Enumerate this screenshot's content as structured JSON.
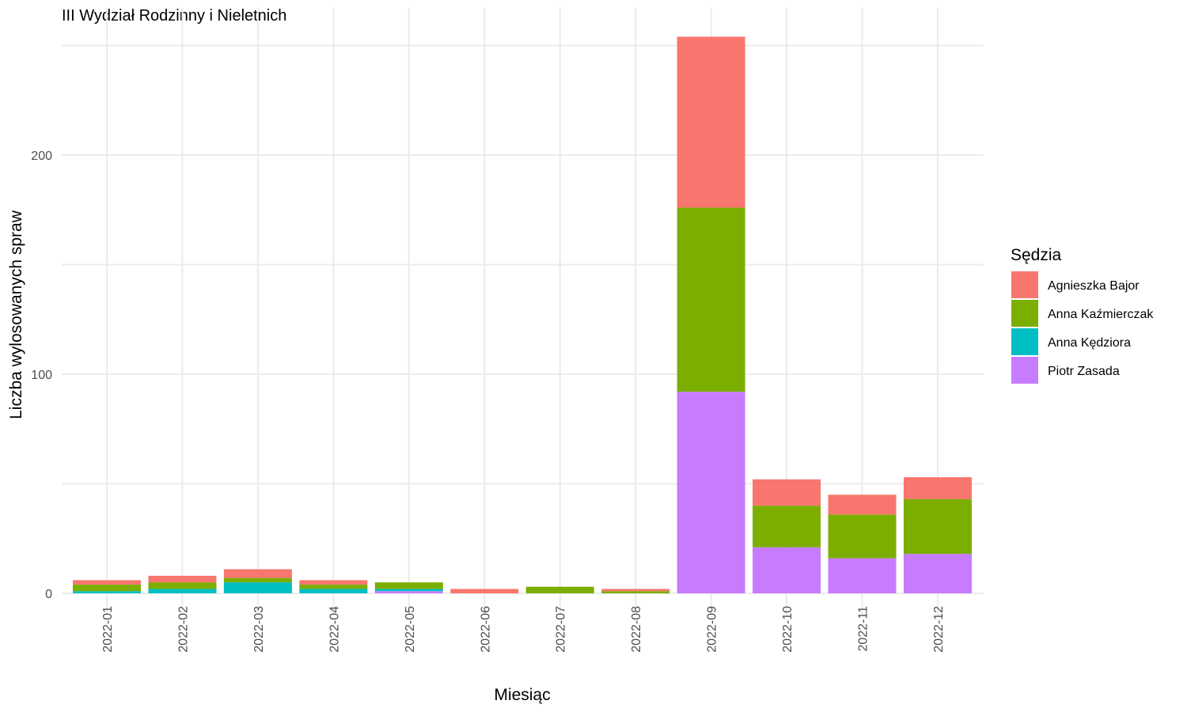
{
  "chart_data": {
    "type": "bar",
    "stacked": true,
    "title": "III Wydział Rodzinny i Nieletnich",
    "xlabel": "Miesiąc",
    "ylabel": "Liczba wylosowanych spraw",
    "ylim": [
      0,
      254
    ],
    "yticks": [
      0,
      100,
      200
    ],
    "grid": true,
    "legend_title": "Sędzia",
    "legend_position": "right",
    "categories": [
      "2022-01",
      "2022-02",
      "2022-03",
      "2022-04",
      "2022-05",
      "2022-06",
      "2022-07",
      "2022-08",
      "2022-09",
      "2022-10",
      "2022-11",
      "2022-12"
    ],
    "series": [
      {
        "name": "Agnieszka Bajor",
        "color": "#F8766D",
        "values": [
          2,
          3,
          4,
          2,
          0,
          2,
          0,
          1,
          78,
          12,
          9,
          10
        ]
      },
      {
        "name": "Anna Kaźmierczak",
        "color": "#7CAE00",
        "values": [
          3,
          3,
          2,
          2,
          3,
          0,
          3,
          1,
          84,
          19,
          20,
          25
        ]
      },
      {
        "name": "Anna Kędziora",
        "color": "#00BFC4",
        "values": [
          1,
          2,
          5,
          2,
          1,
          0,
          0,
          0,
          0,
          0,
          0,
          0
        ]
      },
      {
        "name": "Piotr Zasada",
        "color": "#C77CFF",
        "values": [
          0,
          0,
          0,
          0,
          1,
          0,
          0,
          0,
          92,
          21,
          16,
          18
        ]
      }
    ]
  }
}
